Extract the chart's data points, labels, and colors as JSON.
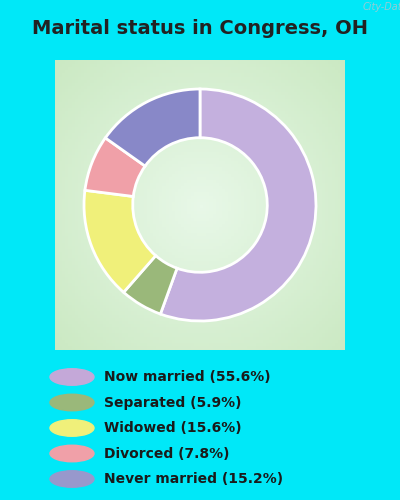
{
  "title": "Marital status in Congress, OH",
  "slices": [
    55.6,
    5.9,
    15.6,
    7.8,
    15.2
  ],
  "labels": [
    "Now married (55.6%)",
    "Separated (5.9%)",
    "Widowed (15.6%)",
    "Divorced (7.8%)",
    "Never married (15.2%)"
  ],
  "colors": [
    "#c4b0de",
    "#9ab87a",
    "#f0f07a",
    "#f0a0a8",
    "#8888c8"
  ],
  "legend_colors": [
    "#c4a8d8",
    "#9ab87a",
    "#f0f07a",
    "#f0a0a8",
    "#9898cc"
  ],
  "bg_cyan": "#00e8f8",
  "bg_chart_outer": "#c8e8c0",
  "bg_chart_inner": "#e8f8e8",
  "title_fontsize": 14,
  "watermark": "City-Data.com",
  "legend_fontsize": 10
}
